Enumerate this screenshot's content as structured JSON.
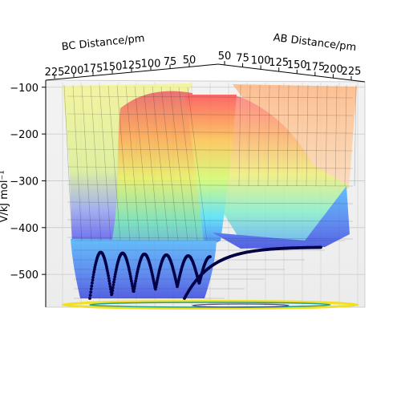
{
  "chart_data": {
    "type": "surface-3d",
    "title": "",
    "xlabel": "AB Distance/pm",
    "ylabel": "BC Distance/pm",
    "zlabel": "V/kJ mol⁻¹",
    "ab_ticks": [
      "50",
      "75",
      "100",
      "125",
      "150",
      "175",
      "200",
      "225"
    ],
    "bc_ticks": [
      "225",
      "200",
      "175",
      "150",
      "125",
      "100",
      "75",
      "50"
    ],
    "z_ticks": [
      "−100",
      "−200",
      "−300",
      "−400",
      "−500"
    ],
    "z_tick_values": [
      -100,
      -200,
      -300,
      -400,
      -500
    ],
    "zlim": [
      -570,
      -85
    ],
    "range_pm": [
      50,
      225
    ],
    "surface_colormap": "jet",
    "contour_colormap": "viridis",
    "trajectory_color": "#000044",
    "grid": true
  }
}
